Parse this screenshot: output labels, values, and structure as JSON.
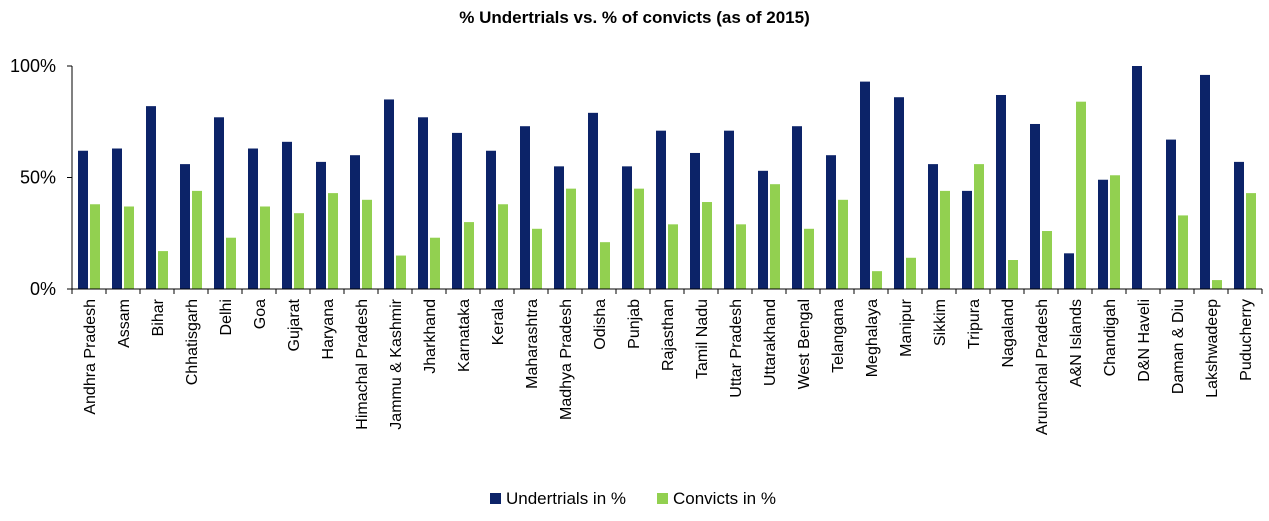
{
  "chart_data": {
    "type": "bar",
    "title": "% Undertrials vs. % of convicts (as of 2015)",
    "xlabel": "",
    "ylabel": "",
    "ylim": [
      0,
      100
    ],
    "yticks": [
      0,
      50,
      100
    ],
    "ytick_labels": [
      "0%",
      "50%",
      "100%"
    ],
    "grid": false,
    "legend_position": "bottom",
    "categories": [
      "Andhra Pradesh",
      "Assam",
      "Bihar",
      "Chhatisgarh",
      "Delhi",
      "Goa",
      "Gujarat",
      "Haryana",
      "Himachal Pradesh",
      "Jammu & Kashmir",
      "Jharkhand",
      "Karnataka",
      "Kerala",
      "Maharashtra",
      "Madhya Pradesh",
      "Odisha",
      "Punjab",
      "Rajasthan",
      "Tamil Nadu",
      "Uttar Pradesh",
      "Uttarakhand",
      "West Bengal",
      "Telangana",
      "Meghalaya",
      "Manipur",
      "Sikkim",
      "Tripura",
      "Nagaland",
      "Arunachal Pradesh",
      "A&N Islands",
      "Chandigah",
      "D&N Haveli",
      "Daman & Diu",
      "Lakshwadeep",
      "Puducherry"
    ],
    "series": [
      {
        "name": "Undertrials in %",
        "color": "#0c2368",
        "values": [
          62,
          63,
          82,
          56,
          77,
          63,
          66,
          57,
          60,
          85,
          77,
          70,
          62,
          73,
          55,
          79,
          55,
          71,
          61,
          71,
          53,
          73,
          60,
          93,
          86,
          56,
          44,
          87,
          74,
          16,
          49,
          100,
          67,
          96,
          57
        ]
      },
      {
        "name": "Convicts in %",
        "color": "#92d050",
        "values": [
          38,
          37,
          17,
          44,
          23,
          37,
          34,
          43,
          40,
          15,
          23,
          30,
          38,
          27,
          45,
          21,
          45,
          29,
          39,
          29,
          47,
          27,
          40,
          8,
          14,
          44,
          56,
          13,
          26,
          84,
          51,
          0,
          33,
          4,
          43
        ]
      }
    ]
  }
}
